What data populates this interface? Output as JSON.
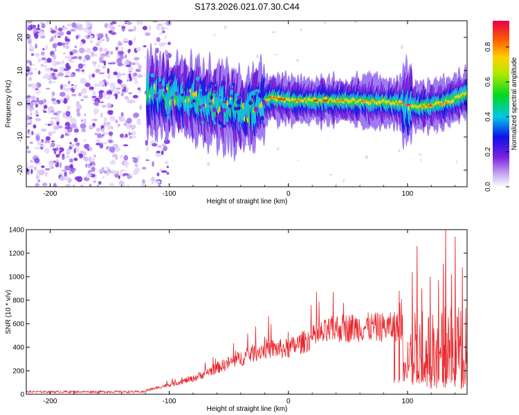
{
  "title": "S173.2026.021.07.30.C44",
  "chart_data": [
    {
      "type": "heatmap",
      "xlabel": "Height of straight line (km)",
      "ylabel": "Frequency (Hz)",
      "xlim": [
        -220,
        150
      ],
      "ylim": [
        -25,
        25
      ],
      "xticks": [
        "-200",
        "-100",
        "0",
        "100"
      ],
      "yticks": [
        "20",
        "10",
        "0",
        "-10",
        "-20"
      ],
      "colorbar": {
        "label": "Normalized spectral amplitude",
        "range": [
          0,
          0.95
        ],
        "ticks": [
          "0.0",
          "0.2",
          "0.4",
          "0.6",
          "0.8"
        ]
      },
      "features": {
        "noise_region_km": [
          -220,
          -110
        ],
        "signal_band_centers_hz": [
          {
            "x": -115,
            "f": 3
          },
          {
            "x": -90,
            "f": 2
          },
          {
            "x": -70,
            "f": 0
          },
          {
            "x": -50,
            "f": 0
          },
          {
            "x": -35,
            "f": -3
          },
          {
            "x": -25,
            "f": -1
          },
          {
            "x": -15,
            "f": 2
          },
          {
            "x": 0,
            "f": 1
          },
          {
            "x": 40,
            "f": 1
          },
          {
            "x": 80,
            "f": 0.5
          },
          {
            "x": 97,
            "f": 0
          },
          {
            "x": 110,
            "f": -1
          },
          {
            "x": 130,
            "f": 0
          },
          {
            "x": 150,
            "f": 3
          }
        ]
      }
    },
    {
      "type": "line",
      "xlabel": "Height of straight line (km)",
      "ylabel": "SNR (10 * v/v)",
      "xlim": [
        -220,
        150
      ],
      "ylim": [
        0,
        1400
      ],
      "xticks": [
        "-200",
        "-100",
        "0",
        "100"
      ],
      "yticks": [
        "0",
        "200",
        "400",
        "600",
        "800",
        "1000",
        "1200",
        "1400"
      ],
      "color": "#e8252a",
      "envelope": {
        "x": [
          -220,
          -150,
          -120,
          -100,
          -80,
          -60,
          -40,
          -20,
          0,
          20,
          40,
          60,
          80,
          96,
          100,
          110,
          120,
          130,
          140,
          150
        ],
        "y": [
          20,
          20,
          30,
          80,
          130,
          220,
          300,
          380,
          380,
          470,
          550,
          560,
          560,
          560,
          450,
          450,
          450,
          450,
          450,
          450
        ]
      },
      "peaks": [
        {
          "x": 89,
          "y": 700
        },
        {
          "x": 93,
          "y": 880
        },
        {
          "x": 104,
          "y": 1040
        },
        {
          "x": 108,
          "y": 1260
        },
        {
          "x": 112,
          "y": 900
        },
        {
          "x": 119,
          "y": 1000
        },
        {
          "x": 126,
          "y": 970
        },
        {
          "x": 130,
          "y": 1110
        },
        {
          "x": 132,
          "y": 1420
        },
        {
          "x": 137,
          "y": 1020
        },
        {
          "x": 140,
          "y": 1340
        },
        {
          "x": 146,
          "y": 1080
        }
      ]
    }
  ]
}
